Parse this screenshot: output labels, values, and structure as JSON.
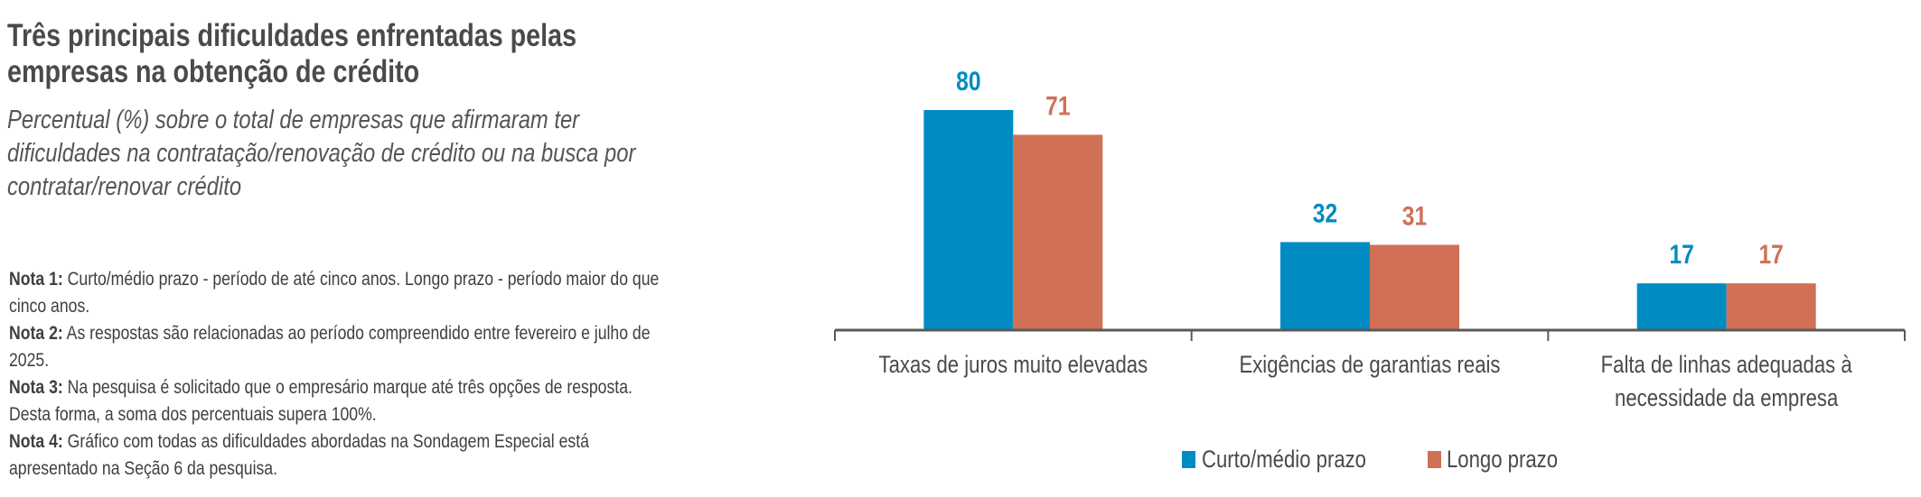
{
  "title": "Três principais dificuldades enfrentadas pelas empresas na obtenção de crédito",
  "subtitle": "Percentual (%) sobre o total de empresas que afirmaram ter dificuldades na contratação/renovação de crédito ou na busca por contratar/renovar crédito",
  "notes": [
    {
      "label": "Nota 1:",
      "text": " Curto/médio prazo - período de até cinco anos. Longo prazo - período maior do que cinco anos."
    },
    {
      "label": "Nota 2:",
      "text": " As respostas são relacionadas ao período compreendido entre fevereiro e julho de 2025."
    },
    {
      "label": "Nota 3:",
      "text": " Na pesquisa é solicitado que o empresário marque até três opções de resposta. Desta forma, a soma dos percentuais supera 100%."
    },
    {
      "label": "Nota 4:",
      "text": " Gráfico com todas as dificuldades abordadas na Sondagem Especial está apresentado na Seção 6 da pesquisa."
    }
  ],
  "chart_data": {
    "type": "bar",
    "title": "Três principais dificuldades enfrentadas pelas empresas na obtenção de crédito",
    "xlabel": "",
    "ylabel": "Percentual (%)",
    "ylim": [
      0,
      80
    ],
    "grid": false,
    "legend_position": "bottom",
    "categories": [
      [
        "Taxas de juros muito elevadas"
      ],
      [
        "Exigências de garantias reais"
      ],
      [
        "Falta de linhas adequadas à",
        "necessidade da empresa"
      ]
    ],
    "series": [
      {
        "name": "Curto/médio prazo",
        "color": "#008CC3",
        "values": [
          80,
          32,
          17
        ]
      },
      {
        "name": "Longo prazo",
        "color": "#D07055",
        "values": [
          71,
          31,
          17
        ]
      }
    ]
  }
}
